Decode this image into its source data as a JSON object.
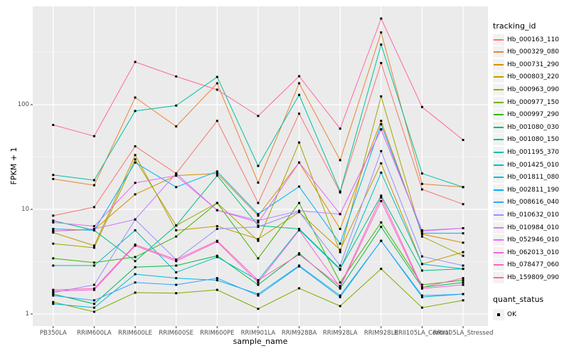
{
  "chart_data": {
    "type": "line",
    "xlabel": "sample_name",
    "ylabel": "FPKM + 1",
    "yscale": "log10",
    "ybreaks": [
      1,
      10,
      100
    ],
    "yminor_breaks": [
      3.162,
      31.62,
      316.2
    ],
    "ylim": [
      0.78,
      860
    ],
    "grid": "white major+minor gridlines on gray panel",
    "panel_color": "#EBEBEB",
    "grid_color": "#FFFFFF",
    "axis_text_color": "#4D4D4D",
    "marker": "black-filled-square",
    "legend_position": "right",
    "legend_title": "tracking_id",
    "point_legend": {
      "title": "quant_status",
      "entries": [
        {
          "label": "OK",
          "marker": "black-square"
        }
      ]
    },
    "categories": [
      "PB350LA",
      "RRIM600LA",
      "RRIM600LE",
      "RRIM600SE",
      "RRIM600PE",
      "RRIM901LA",
      "RRIM928BA",
      "RRIM928LA",
      "RRIM928LE",
      "RRII105LA_Control",
      "RRII105LA_Stressed"
    ],
    "series": [
      {
        "name": "Hb_000163_110",
        "color": "#F8766D",
        "values": [
          8.7,
          10.5,
          40,
          22,
          70,
          11.5,
          82,
          14.5,
          250,
          15.5,
          11.2
        ]
      },
      {
        "name": "Hb_000329_080",
        "color": "#EA8331",
        "values": [
          19.5,
          17,
          117,
          62,
          160,
          18,
          160,
          29.5,
          490,
          17.5,
          16.3
        ]
      },
      {
        "name": "Hb_000731_290",
        "color": "#D89000",
        "values": [
          6.2,
          6.4,
          13.9,
          21,
          22,
          8.7,
          28,
          6.5,
          70,
          5.8,
          4.8
        ]
      },
      {
        "name": "Hb_000803_220",
        "color": "#C09B00",
        "values": [
          6.0,
          4.5,
          33,
          6.3,
          6.9,
          5.2,
          9.4,
          4.1,
          27.5,
          3.0,
          3.9
        ]
      },
      {
        "name": "Hb_000963_090",
        "color": "#A3A500",
        "values": [
          4.7,
          4.3,
          30,
          7.0,
          11.5,
          5.0,
          43.5,
          3.9,
          120,
          5.5,
          3.6
        ]
      },
      {
        "name": "Hb_000977_150",
        "color": "#7CAE00",
        "values": [
          1.3,
          1.05,
          1.6,
          1.58,
          1.7,
          1.12,
          1.76,
          1.19,
          2.7,
          1.15,
          1.35
        ]
      },
      {
        "name": "Hb_000997_290",
        "color": "#39B600",
        "values": [
          3.4,
          3.1,
          3.5,
          5.5,
          11.5,
          3.4,
          11.5,
          2.0,
          7.5,
          1.9,
          2.1
        ]
      },
      {
        "name": "Hb_001080_030",
        "color": "#00BB4E",
        "values": [
          1.55,
          1.25,
          2.8,
          2.9,
          3.6,
          1.9,
          3.8,
          1.75,
          6.8,
          1.8,
          2.0
        ]
      },
      {
        "name": "Hb_001080_150",
        "color": "#00BF7D",
        "values": [
          7.8,
          6.3,
          3.2,
          7.0,
          21,
          7.0,
          6.5,
          2.7,
          13.5,
          2.6,
          2.7
        ]
      },
      {
        "name": "Hb_001195_370",
        "color": "#00C1A3",
        "values": [
          21.3,
          19,
          87,
          98,
          184,
          26,
          124,
          14.8,
          375,
          22,
          16.3
        ]
      },
      {
        "name": "Hb_001425_010",
        "color": "#00BFC4",
        "values": [
          2.9,
          2.9,
          6.3,
          2.5,
          3.5,
          2.1,
          6.4,
          2.65,
          22.4,
          3.0,
          2.7
        ]
      },
      {
        "name": "Hb_001811_080",
        "color": "#00BAE0",
        "values": [
          1.25,
          1.15,
          2.4,
          2.2,
          2.1,
          1.55,
          2.9,
          1.5,
          5.0,
          1.45,
          1.55
        ]
      },
      {
        "name": "Hb_002811_190",
        "color": "#00B0F6",
        "values": [
          6.5,
          6.3,
          28,
          16.3,
          23,
          9.0,
          16.5,
          4.7,
          65,
          5.9,
          5.9
        ]
      },
      {
        "name": "Hb_008616_040",
        "color": "#35A2FF",
        "values": [
          1.5,
          1.35,
          2.0,
          1.9,
          2.2,
          1.5,
          2.85,
          1.45,
          5.0,
          1.5,
          1.55
        ]
      },
      {
        "name": "Hb_010632_010",
        "color": "#9590FF",
        "values": [
          1.6,
          1.9,
          8.0,
          3.3,
          6.5,
          6.8,
          9.5,
          2.9,
          36,
          3.55,
          2.9
        ]
      },
      {
        "name": "Hb_010984_010",
        "color": "#C77CFF",
        "values": [
          6.2,
          6.5,
          8.0,
          22,
          9.8,
          7.8,
          9.7,
          9.0,
          58,
          6.2,
          6.6
        ]
      },
      {
        "name": "Hb_052946_010",
        "color": "#E76BF3",
        "values": [
          7.5,
          6.9,
          17.9,
          21,
          9.8,
          7.5,
          28,
          9.0,
          58,
          6.3,
          6.6
        ]
      },
      {
        "name": "Hb_062013_010",
        "color": "#FA62DB",
        "values": [
          1.65,
          1.7,
          4.5,
          3.2,
          4.9,
          2.0,
          6.3,
          1.8,
          12,
          1.75,
          1.9
        ]
      },
      {
        "name": "Hb_078477_060",
        "color": "#FF62BC",
        "values": [
          1.7,
          1.75,
          4.6,
          3.3,
          5.0,
          2.1,
          3.7,
          1.85,
          13,
          1.8,
          2.2
        ]
      },
      {
        "name": "Hb_159809_090",
        "color": "#FF6A98",
        "values": [
          64,
          50,
          256,
          186,
          139,
          78,
          187,
          59,
          665,
          95,
          46
        ]
      }
    ]
  }
}
